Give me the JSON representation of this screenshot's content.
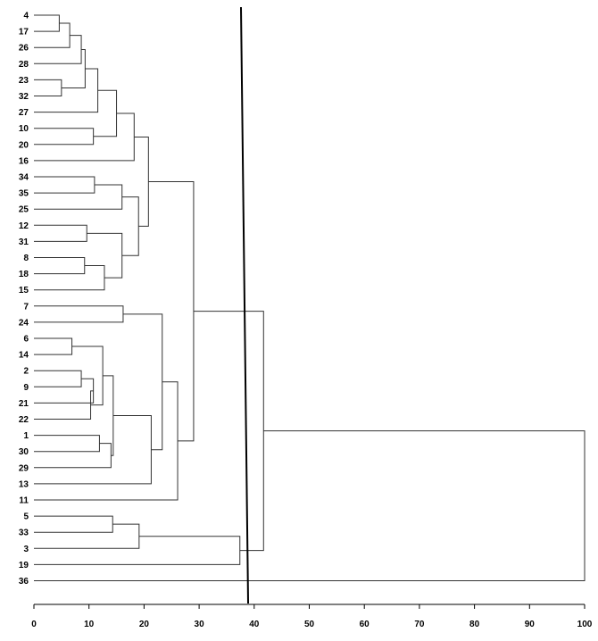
{
  "chart_data": {
    "type": "dendrogram",
    "orientation": "horizontal",
    "title": "",
    "xlabel": "",
    "ylabel": "",
    "xlim": [
      0,
      100
    ],
    "xticks": [
      0,
      10,
      20,
      30,
      40,
      50,
      60,
      70,
      80,
      90,
      100
    ],
    "leaves": [
      "4",
      "17",
      "26",
      "28",
      "23",
      "32",
      "27",
      "10",
      "20",
      "16",
      "34",
      "35",
      "25",
      "12",
      "31",
      "8",
      "18",
      "15",
      "7",
      "24",
      "6",
      "14",
      "2",
      "9",
      "21",
      "22",
      "1",
      "30",
      "29",
      "13",
      "11",
      "5",
      "33",
      "3",
      "19",
      "36"
    ],
    "merges": [
      {
        "id": "m1",
        "children": [
          "4",
          "17"
        ],
        "height": 4.6
      },
      {
        "id": "m2",
        "children": [
          "m1",
          "26"
        ],
        "height": 6.5
      },
      {
        "id": "m3",
        "children": [
          "m2",
          "28"
        ],
        "height": 8.6
      },
      {
        "id": "m4",
        "children": [
          "23",
          "32"
        ],
        "height": 5.0
      },
      {
        "id": "m5",
        "children": [
          "m3",
          "m4"
        ],
        "height": 9.3
      },
      {
        "id": "m6",
        "children": [
          "m5",
          "27"
        ],
        "height": 11.6
      },
      {
        "id": "m7",
        "children": [
          "10",
          "20"
        ],
        "height": 10.8
      },
      {
        "id": "m8",
        "children": [
          "m6",
          "m7"
        ],
        "height": 15.0
      },
      {
        "id": "m9",
        "children": [
          "m8",
          "16"
        ],
        "height": 18.2
      },
      {
        "id": "m10",
        "children": [
          "34",
          "35"
        ],
        "height": 11.0
      },
      {
        "id": "m11",
        "children": [
          "m10",
          "25"
        ],
        "height": 16.0
      },
      {
        "id": "m12",
        "children": [
          "12",
          "31"
        ],
        "height": 9.6
      },
      {
        "id": "m13",
        "children": [
          "8",
          "18"
        ],
        "height": 9.2
      },
      {
        "id": "m14",
        "children": [
          "m13",
          "15"
        ],
        "height": 12.8
      },
      {
        "id": "m15",
        "children": [
          "m12",
          "m14"
        ],
        "height": 16.0
      },
      {
        "id": "m16",
        "children": [
          "m11",
          "m15"
        ],
        "height": 19.0
      },
      {
        "id": "m17",
        "children": [
          "m9",
          "m16"
        ],
        "height": 20.8
      },
      {
        "id": "m18",
        "children": [
          "7",
          "24"
        ],
        "height": 16.2
      },
      {
        "id": "m19",
        "children": [
          "6",
          "14"
        ],
        "height": 6.9
      },
      {
        "id": "m20",
        "children": [
          "2",
          "9"
        ],
        "height": 8.6
      },
      {
        "id": "m21",
        "children": [
          "m20",
          "21"
        ],
        "height": 10.8
      },
      {
        "id": "m22",
        "children": [
          "m21",
          "22"
        ],
        "height": 10.3
      },
      {
        "id": "m23",
        "children": [
          "m19",
          "m22"
        ],
        "height": 12.5
      },
      {
        "id": "m24",
        "children": [
          "1",
          "30"
        ],
        "height": 11.9
      },
      {
        "id": "m25",
        "children": [
          "m24",
          "29"
        ],
        "height": 14.0
      },
      {
        "id": "m26",
        "children": [
          "m23",
          "m25"
        ],
        "height": 14.4
      },
      {
        "id": "m27",
        "children": [
          "m26",
          "13"
        ],
        "height": 21.3
      },
      {
        "id": "m28",
        "children": [
          "m18",
          "m27"
        ],
        "height": 23.3
      },
      {
        "id": "m29",
        "children": [
          "m28",
          "11"
        ],
        "height": 26.1
      },
      {
        "id": "m30",
        "children": [
          "m17",
          "m29"
        ],
        "height": 29.0
      },
      {
        "id": "m31",
        "children": [
          "5",
          "33"
        ],
        "height": 14.3
      },
      {
        "id": "m32",
        "children": [
          "m31",
          "3"
        ],
        "height": 19.1
      },
      {
        "id": "m33",
        "children": [
          "m32",
          "19"
        ],
        "height": 37.4
      },
      {
        "id": "m34",
        "children": [
          "m30",
          "m33"
        ],
        "height": 41.7
      },
      {
        "id": "m35",
        "children": [
          "m34",
          "36"
        ],
        "height": 100.0
      }
    ],
    "cut_line": {
      "value_top": 37.6,
      "value_bottom": 38.9
    },
    "grid": false,
    "legend": "none"
  }
}
